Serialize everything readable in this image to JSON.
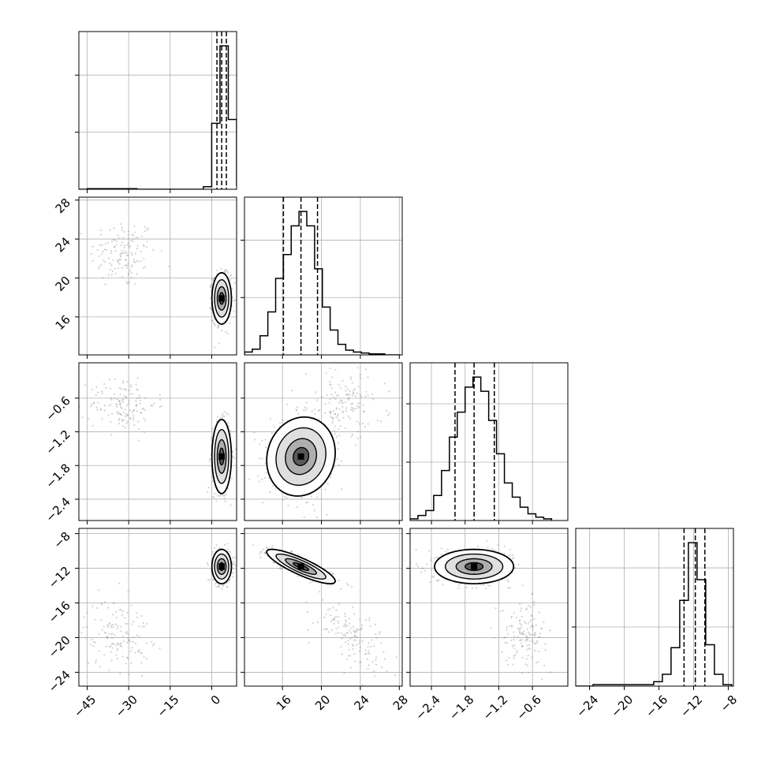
{
  "chart_data": {
    "type": "corner",
    "title": "",
    "grid": true,
    "colors": {
      "line": "#000000",
      "scatter": "#808080",
      "grid": "#b0b0b0",
      "background": "#ffffff"
    },
    "parameters": [
      {
        "index": 0,
        "label": "",
        "range": [
          -48,
          9
        ],
        "ticks": [
          "-45",
          "-30",
          "-15",
          "0"
        ]
      },
      {
        "index": 1,
        "label": "",
        "range": [
          12.1,
          28.3
        ],
        "ticks": [
          "16",
          "20",
          "24",
          "28"
        ]
      },
      {
        "index": 2,
        "label": "",
        "range": [
          -2.78,
          0.03
        ],
        "ticks": [
          "-2.4",
          "-1.8",
          "-1.2",
          "-0.6"
        ]
      },
      {
        "index": 3,
        "label": "",
        "range": [
          -25.6,
          -7.4
        ],
        "ticks": [
          "-24",
          "-20",
          "-16",
          "-12",
          "-8"
        ]
      }
    ],
    "marginals": [
      {
        "param": 0,
        "bin_edges": [
          -48,
          -45,
          -42,
          -39,
          -36,
          -33,
          -30,
          -27,
          -24,
          -21,
          -18,
          -15,
          -12,
          -9,
          -6,
          -3,
          0,
          3,
          6,
          9
        ],
        "counts": [
          0,
          1,
          1,
          1,
          1,
          1,
          1,
          0,
          0,
          0,
          0,
          0,
          0,
          0,
          0,
          4,
          104,
          226,
          110,
          5
        ],
        "quantiles": [
          1.9,
          3.6,
          5.3
        ]
      },
      {
        "param": 1,
        "bin_edges": [
          12.1,
          12.9,
          13.7,
          14.5,
          15.3,
          16.1,
          16.9,
          17.7,
          18.5,
          19.3,
          20.1,
          20.9,
          21.7,
          22.5,
          23.3,
          24.1,
          24.9,
          25.7,
          26.5,
          27.3,
          28.1
        ],
        "counts": [
          3,
          6,
          20,
          45,
          80,
          105,
          135,
          150,
          135,
          90,
          50,
          26,
          11,
          5,
          3,
          2,
          1,
          1,
          0,
          0
        ],
        "quantiles": [
          16.1,
          17.9,
          19.6
        ]
      },
      {
        "param": 2,
        "bin_edges": [
          -2.78,
          -2.64,
          -2.5,
          -2.36,
          -2.22,
          -2.08,
          -1.94,
          -1.8,
          -1.66,
          -1.52,
          -1.38,
          -1.24,
          -1.1,
          -0.96,
          -0.82,
          -0.68,
          -0.54,
          -0.4,
          -0.26
        ],
        "counts": [
          2,
          6,
          12,
          30,
          60,
          100,
          130,
          160,
          172,
          155,
          120,
          80,
          45,
          28,
          16,
          8,
          4,
          2
        ],
        "quantiles": [
          -1.98,
          -1.64,
          -1.28
        ]
      },
      {
        "param": 3,
        "bin_edges": [
          -25.6,
          -24.6,
          -23.6,
          -22.6,
          -21.6,
          -20.6,
          -19.6,
          -18.6,
          -17.6,
          -16.6,
          -15.6,
          -14.6,
          -13.6,
          -12.6,
          -11.6,
          -10.6,
          -9.6,
          -8.6,
          -7.6
        ],
        "counts": [
          0,
          0,
          1,
          1,
          1,
          1,
          1,
          1,
          1,
          3,
          8,
          26,
          58,
          97,
          72,
          28,
          8,
          1
        ],
        "quantiles": [
          -13.1,
          -11.8,
          -10.7
        ]
      }
    ],
    "pairs": [
      {
        "x": 0,
        "y": 1,
        "core_center": [
          3.6,
          17.9
        ],
        "core_sd": [
          1.6,
          1.2
        ],
        "core_corr": 0.0,
        "outlier_center": [
          -32,
          22.5
        ],
        "outlier_sd": [
          6,
          1.8
        ],
        "outlier_corr": 0.0
      },
      {
        "x": 0,
        "y": 2,
        "core_center": [
          3.6,
          -1.64
        ],
        "core_sd": [
          1.6,
          0.3
        ],
        "core_corr": 0.0,
        "outlier_center": [
          -32,
          -0.7
        ],
        "outlier_sd": [
          6,
          0.25
        ],
        "outlier_corr": 0.0
      },
      {
        "x": 0,
        "y": 3,
        "core_center": [
          3.6,
          -11.8
        ],
        "core_sd": [
          1.6,
          0.9
        ],
        "core_corr": 0.0,
        "outlier_center": [
          -34,
          -19.5
        ],
        "outlier_sd": [
          6,
          2.0
        ],
        "outlier_corr": 0.0
      },
      {
        "x": 1,
        "y": 2,
        "core_center": [
          17.9,
          -1.64
        ],
        "core_sd": [
          1.6,
          0.32
        ],
        "core_corr": 0.1,
        "outlier_center": [
          22.5,
          -0.7
        ],
        "outlier_sd": [
          2.0,
          0.3
        ],
        "outlier_corr": 0.0
      },
      {
        "x": 1,
        "y": 3,
        "core_center": [
          17.9,
          -11.8
        ],
        "core_sd": [
          1.6,
          0.9
        ],
        "core_corr": -0.85,
        "outlier_center": [
          23,
          -19.5
        ],
        "outlier_sd": [
          1.8,
          2.0
        ],
        "outlier_corr": -0.6
      },
      {
        "x": 2,
        "y": 3,
        "core_center": [
          -1.64,
          -11.8
        ],
        "core_sd": [
          0.32,
          0.9
        ],
        "core_corr": 0.0,
        "outlier_center": [
          -0.75,
          -19.5
        ],
        "outlier_sd": [
          0.2,
          1.8
        ],
        "outlier_corr": 0.0
      }
    ]
  }
}
